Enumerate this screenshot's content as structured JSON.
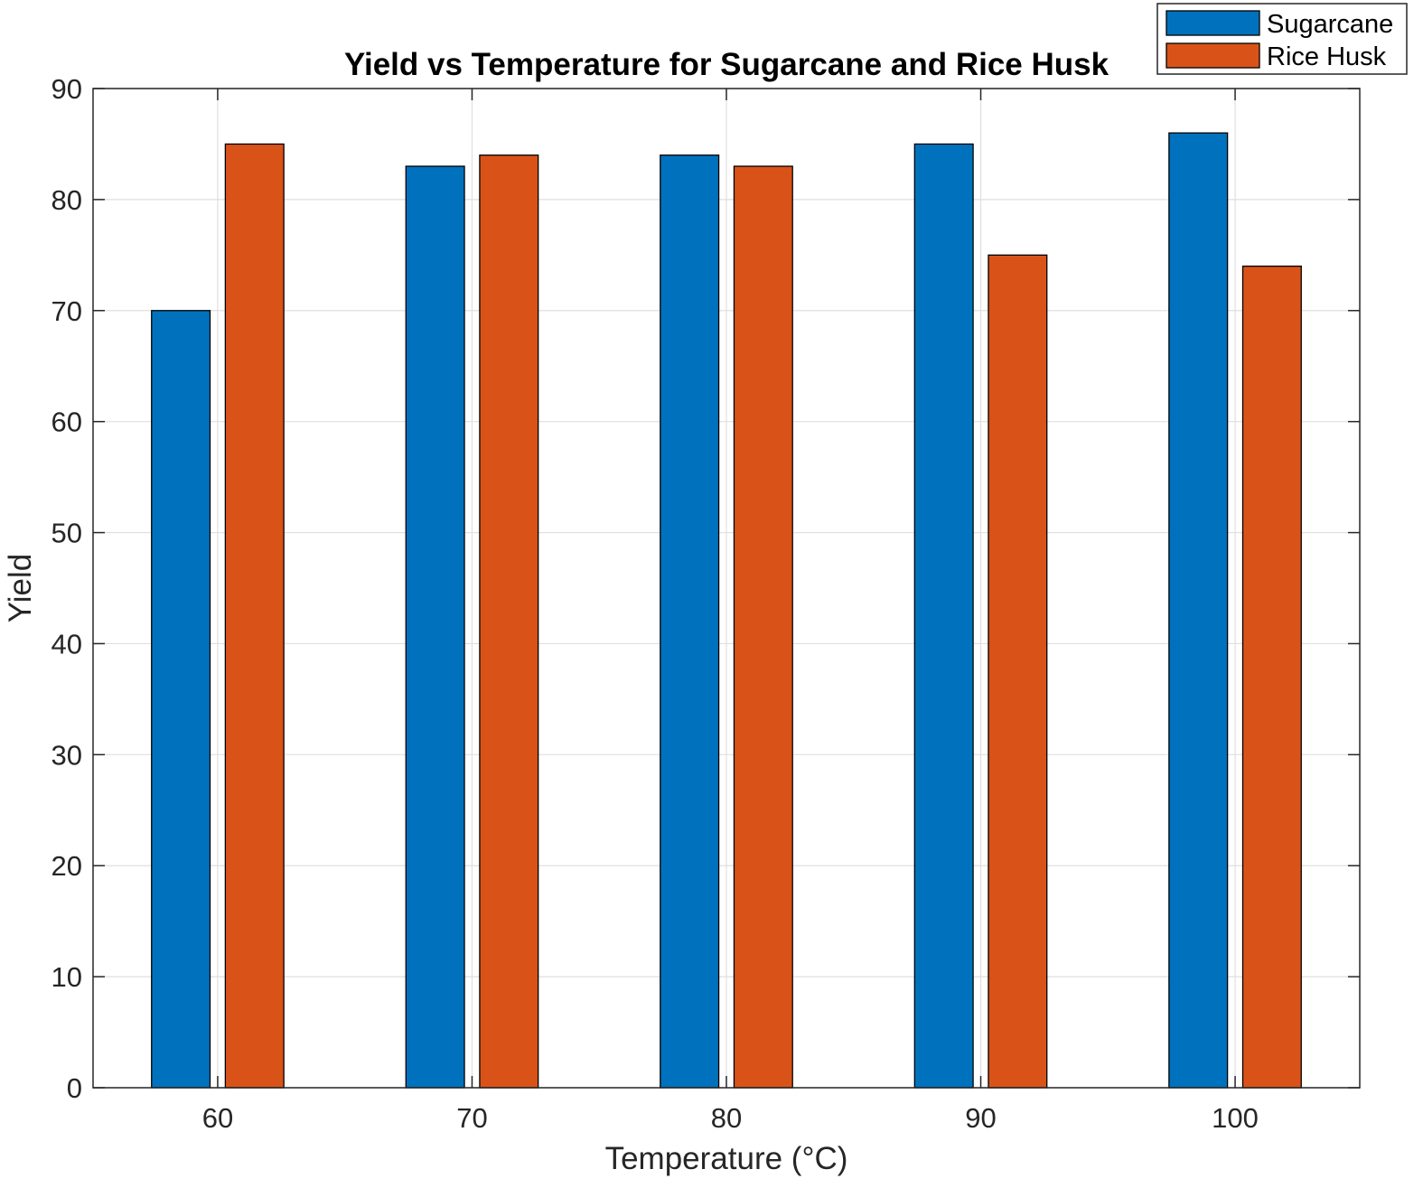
{
  "chart_data": {
    "type": "bar",
    "title": "Yield vs Temperature for Sugarcane and Rice Husk",
    "xlabel": "Temperature (°C)",
    "ylabel": "Yield",
    "categories": [
      "60",
      "70",
      "80",
      "90",
      "100"
    ],
    "series": [
      {
        "name": "Sugarcane",
        "color": "#0072BD",
        "values": [
          70,
          83,
          84,
          85,
          86
        ]
      },
      {
        "name": "Rice Husk",
        "color": "#D95319",
        "values": [
          85,
          84,
          83,
          75,
          74
        ]
      }
    ],
    "ylim": [
      0,
      90
    ],
    "yticks": [
      "0",
      "10",
      "20",
      "30",
      "40",
      "50",
      "60",
      "70",
      "80",
      "90"
    ],
    "grid": true,
    "legend_position": "top-right"
  }
}
